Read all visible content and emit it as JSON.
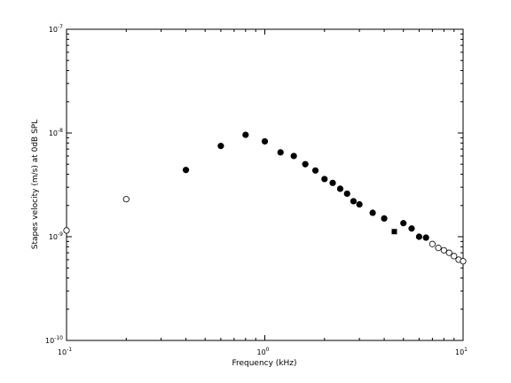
{
  "chart_data": {
    "type": "scatter",
    "title": "",
    "xlabel": "Frequency (kHz)",
    "ylabel": "Stapes velocity (m/s) at 0dB SPL",
    "xscale": "log",
    "yscale": "log",
    "xlim": [
      0.1,
      10
    ],
    "ylim": [
      1e-10,
      1e-07
    ],
    "grid": false,
    "x_ticks": [
      {
        "value": 0.1,
        "base": "10",
        "exp": "-1"
      },
      {
        "value": 1,
        "base": "10",
        "exp": "0"
      },
      {
        "value": 10,
        "base": "10",
        "exp": "1"
      }
    ],
    "y_ticks": [
      {
        "value": 1e-10,
        "base": "10",
        "exp": "-10"
      },
      {
        "value": 1e-09,
        "base": "10",
        "exp": "-9"
      },
      {
        "value": 1e-08,
        "base": "10",
        "exp": "-8"
      },
      {
        "value": 1e-07,
        "base": "10",
        "exp": "-7"
      }
    ],
    "series": [
      {
        "marker": "filled-circle",
        "color": "#000000",
        "x": [
          0.4,
          0.6,
          0.8,
          1.0,
          1.2,
          1.4,
          1.6,
          1.8,
          2.0,
          2.2,
          2.4,
          2.6,
          2.8,
          3.0,
          3.5,
          4.0,
          5.0,
          5.5,
          6.0,
          6.5
        ],
        "y": [
          4.4e-09,
          7.5e-09,
          9.6e-09,
          8.3e-09,
          6.5e-09,
          6e-09,
          5e-09,
          4.35e-09,
          3.6e-09,
          3.3e-09,
          2.9e-09,
          2.6e-09,
          2.2e-09,
          2.05e-09,
          1.7e-09,
          1.5e-09,
          1.35e-09,
          1.2e-09,
          1e-09,
          9.8e-10
        ]
      },
      {
        "marker": "filled-square",
        "color": "#000000",
        "x": [
          4.5
        ],
        "y": [
          1.12e-09
        ]
      },
      {
        "marker": "open-circle",
        "color": "#000000",
        "x": [
          0.1,
          0.2,
          7.0,
          7.5,
          8.0,
          8.5,
          9.0,
          9.5,
          10.0
        ],
        "y": [
          1.15e-09,
          2.3e-09,
          8.5e-10,
          7.8e-10,
          7.4e-10,
          7e-10,
          6.5e-10,
          6e-10,
          5.8e-10
        ]
      }
    ]
  }
}
